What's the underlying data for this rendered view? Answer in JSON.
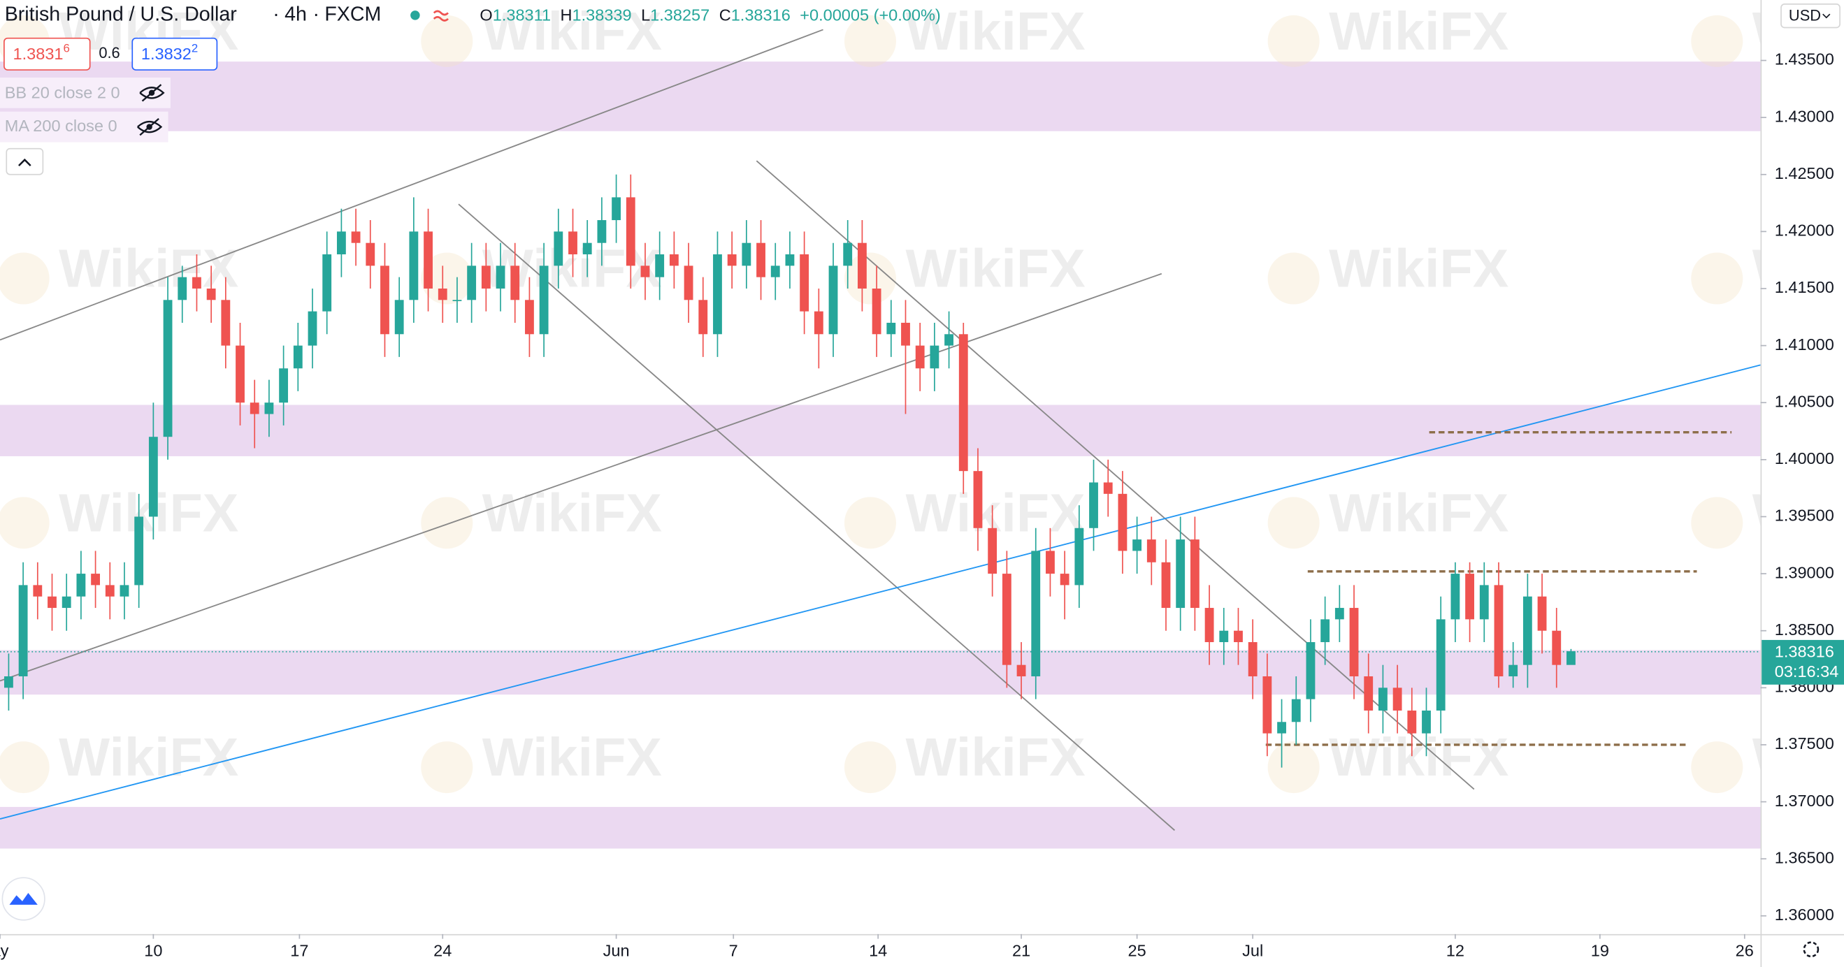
{
  "header": {
    "symbol": "British Pound / U.S. Dollar",
    "interval": "4h",
    "source": "FXCM",
    "ohlc": [
      {
        "label": "O",
        "value": "1.38311"
      },
      {
        "label": "H",
        "value": "1.38339"
      },
      {
        "label": "L",
        "value": "1.38257"
      },
      {
        "label": "C",
        "value": "1.38316"
      }
    ],
    "change": "+0.00005 (+0.00%)",
    "sell": {
      "main": "1.3831",
      "sup": "6"
    },
    "spread": "0.6",
    "buy": {
      "main": "1.3832",
      "sup": "2"
    },
    "indicators": [
      "BB 20 close 2 0",
      "MA 200 close 0"
    ],
    "currency": "USD",
    "countdown": "03:16:34",
    "watermark": "WikiFX"
  },
  "chart_data": {
    "type": "candlestick",
    "x": [
      -10,
      -9,
      -8,
      -7,
      -6,
      -5,
      -4,
      -3,
      -2,
      -1,
      0,
      1,
      2,
      3,
      4,
      5,
      6,
      7,
      8,
      9,
      10,
      11,
      12,
      13,
      14,
      15,
      16,
      17,
      18,
      19,
      20,
      21,
      22,
      23,
      24,
      25,
      26,
      27,
      28,
      29,
      30,
      31,
      32,
      33,
      34,
      35,
      36,
      37,
      38,
      39,
      40,
      41,
      42,
      43,
      44,
      45,
      46,
      47,
      48,
      49,
      50,
      51,
      52,
      53,
      54,
      55,
      56,
      57,
      58,
      59,
      60,
      61,
      62,
      63,
      64,
      65,
      66,
      67,
      68,
      69,
      70,
      71,
      72,
      73,
      74,
      75,
      76,
      77,
      78,
      79,
      80,
      81,
      82,
      83,
      84,
      85,
      86,
      87,
      88,
      89,
      90,
      91,
      92,
      93,
      94,
      95,
      96,
      97,
      98
    ],
    "open": [
      1.38,
      1.381,
      1.389,
      1.388,
      1.387,
      1.388,
      1.39,
      1.389,
      1.388,
      1.389,
      1.395,
      1.402,
      1.414,
      1.416,
      1.415,
      1.414,
      1.41,
      1.405,
      1.404,
      1.405,
      1.408,
      1.41,
      1.413,
      1.418,
      1.42,
      1.419,
      1.417,
      1.411,
      1.414,
      1.42,
      1.415,
      1.414,
      1.414,
      1.417,
      1.415,
      1.417,
      1.414,
      1.411,
      1.417,
      1.42,
      1.418,
      1.419,
      1.421,
      1.423,
      1.417,
      1.416,
      1.418,
      1.417,
      1.414,
      1.411,
      1.418,
      1.417,
      1.419,
      1.416,
      1.417,
      1.418,
      1.413,
      1.411,
      1.417,
      1.419,
      1.415,
      1.411,
      1.412,
      1.41,
      1.408,
      1.41,
      1.411,
      1.399,
      1.394,
      1.39,
      1.382,
      1.381,
      1.392,
      1.39,
      1.389,
      1.394,
      1.398,
      1.397,
      1.392,
      1.393,
      1.391,
      1.387,
      1.393,
      1.387,
      1.384,
      1.385,
      1.384,
      1.381,
      1.376,
      1.377,
      1.379,
      1.384,
      1.386,
      1.387,
      1.381,
      1.378,
      1.38,
      1.378,
      1.376,
      1.378,
      1.386,
      1.39,
      1.386,
      1.389,
      1.381,
      1.382,
      1.388,
      1.385,
      1.382
    ],
    "high": [
      1.383,
      1.391,
      1.391,
      1.39,
      1.39,
      1.392,
      1.392,
      1.391,
      1.391,
      1.397,
      1.405,
      1.416,
      1.417,
      1.418,
      1.417,
      1.416,
      1.412,
      1.407,
      1.407,
      1.41,
      1.412,
      1.415,
      1.42,
      1.422,
      1.422,
      1.421,
      1.419,
      1.416,
      1.423,
      1.422,
      1.417,
      1.416,
      1.419,
      1.419,
      1.419,
      1.419,
      1.416,
      1.419,
      1.422,
      1.422,
      1.421,
      1.423,
      1.425,
      1.425,
      1.419,
      1.42,
      1.42,
      1.419,
      1.416,
      1.42,
      1.42,
      1.421,
      1.421,
      1.419,
      1.42,
      1.42,
      1.415,
      1.419,
      1.421,
      1.421,
      1.417,
      1.414,
      1.414,
      1.412,
      1.412,
      1.413,
      1.412,
      1.401,
      1.396,
      1.392,
      1.384,
      1.394,
      1.394,
      1.392,
      1.396,
      1.4,
      1.4,
      1.399,
      1.395,
      1.395,
      1.393,
      1.395,
      1.395,
      1.389,
      1.387,
      1.387,
      1.386,
      1.383,
      1.379,
      1.381,
      1.386,
      1.388,
      1.389,
      1.389,
      1.383,
      1.382,
      1.382,
      1.38,
      1.38,
      1.388,
      1.391,
      1.391,
      1.391,
      1.391,
      1.384,
      1.39,
      1.39,
      1.387,
      1.3834
    ],
    "low": [
      1.378,
      1.379,
      1.386,
      1.385,
      1.385,
      1.386,
      1.387,
      1.386,
      1.386,
      1.387,
      1.393,
      1.4,
      1.412,
      1.413,
      1.412,
      1.408,
      1.403,
      1.401,
      1.402,
      1.403,
      1.406,
      1.408,
      1.411,
      1.416,
      1.417,
      1.415,
      1.409,
      1.409,
      1.412,
      1.413,
      1.412,
      1.412,
      1.412,
      1.413,
      1.413,
      1.412,
      1.409,
      1.409,
      1.415,
      1.416,
      1.416,
      1.417,
      1.419,
      1.415,
      1.414,
      1.414,
      1.415,
      1.412,
      1.409,
      1.409,
      1.415,
      1.415,
      1.414,
      1.414,
      1.415,
      1.411,
      1.408,
      1.409,
      1.415,
      1.413,
      1.409,
      1.409,
      1.404,
      1.406,
      1.406,
      1.408,
      1.397,
      1.392,
      1.388,
      1.38,
      1.379,
      1.379,
      1.388,
      1.386,
      1.387,
      1.392,
      1.395,
      1.39,
      1.39,
      1.389,
      1.385,
      1.385,
      1.385,
      1.382,
      1.382,
      1.382,
      1.379,
      1.374,
      1.373,
      1.375,
      1.377,
      1.382,
      1.384,
      1.379,
      1.376,
      1.376,
      1.376,
      1.374,
      1.374,
      1.376,
      1.384,
      1.384,
      1.384,
      1.38,
      1.38,
      1.38,
      1.383,
      1.38,
      1.3826
    ],
    "close": [
      1.381,
      1.389,
      1.388,
      1.387,
      1.388,
      1.39,
      1.389,
      1.388,
      1.389,
      1.395,
      1.402,
      1.414,
      1.416,
      1.415,
      1.414,
      1.41,
      1.405,
      1.404,
      1.405,
      1.408,
      1.41,
      1.413,
      1.418,
      1.42,
      1.419,
      1.417,
      1.411,
      1.414,
      1.42,
      1.415,
      1.414,
      1.414,
      1.417,
      1.415,
      1.417,
      1.414,
      1.411,
      1.417,
      1.42,
      1.418,
      1.419,
      1.421,
      1.423,
      1.417,
      1.416,
      1.418,
      1.417,
      1.414,
      1.411,
      1.418,
      1.417,
      1.419,
      1.416,
      1.417,
      1.418,
      1.413,
      1.411,
      1.417,
      1.419,
      1.415,
      1.411,
      1.412,
      1.41,
      1.408,
      1.41,
      1.411,
      1.399,
      1.394,
      1.39,
      1.382,
      1.381,
      1.392,
      1.39,
      1.389,
      1.394,
      1.398,
      1.397,
      1.392,
      1.393,
      1.391,
      1.387,
      1.393,
      1.387,
      1.384,
      1.385,
      1.384,
      1.381,
      1.376,
      1.377,
      1.379,
      1.384,
      1.386,
      1.387,
      1.381,
      1.378,
      1.38,
      1.378,
      1.376,
      1.378,
      1.386,
      1.39,
      1.386,
      1.389,
      1.381,
      1.382,
      1.388,
      1.385,
      1.382,
      1.3832
    ],
    "up_color": "#26a69a",
    "down_color": "#ef5350",
    "xlim": [
      -10.6,
      111.1
    ],
    "xticks": [
      {
        "value": -10.6,
        "label": "ay"
      },
      {
        "value": 0,
        "label": "10"
      },
      {
        "value": 10.1,
        "label": "17"
      },
      {
        "value": 20,
        "label": "24"
      },
      {
        "value": 32,
        "label": "Jun"
      },
      {
        "value": 40.1,
        "label": "7"
      },
      {
        "value": 50.1,
        "label": "14"
      },
      {
        "value": 60,
        "label": "21"
      },
      {
        "value": 68,
        "label": "25"
      },
      {
        "value": 76,
        "label": "Jul"
      },
      {
        "value": 90,
        "label": "12"
      },
      {
        "value": 100,
        "label": "19"
      },
      {
        "value": 110,
        "label": "26"
      }
    ],
    "ylim": [
      1.3584,
      1.4403
    ],
    "yticks": [
      {
        "value": 1.36,
        "label": "1.36000"
      },
      {
        "value": 1.365,
        "label": "1.36500"
      },
      {
        "value": 1.37,
        "label": "1.37000"
      },
      {
        "value": 1.375,
        "label": "1.37500"
      },
      {
        "value": 1.38,
        "label": "1.38000"
      },
      {
        "value": 1.385,
        "label": "1.38500"
      },
      {
        "value": 1.39,
        "label": "1.39000"
      },
      {
        "value": 1.395,
        "label": "1.39500"
      },
      {
        "value": 1.4,
        "label": "1.40000"
      },
      {
        "value": 1.405,
        "label": "1.40500"
      },
      {
        "value": 1.41,
        "label": "1.41000"
      },
      {
        "value": 1.415,
        "label": "1.41500"
      },
      {
        "value": 1.42,
        "label": "1.42000"
      },
      {
        "value": 1.425,
        "label": "1.42500"
      },
      {
        "value": 1.43,
        "label": "1.43000"
      },
      {
        "value": 1.435,
        "label": "1.43500"
      }
    ],
    "last_price": 1.38316,
    "zones": [
      [
        1.4288,
        1.4349
      ],
      [
        1.4003,
        1.4048
      ],
      [
        1.3794,
        1.3833
      ],
      [
        1.3659,
        1.36955
      ]
    ],
    "zone_color": "#e7d2ee",
    "trendlines": [
      {
        "x": [
          -10.6,
          46.3
        ],
        "y": [
          1.4105,
          1.4377
        ],
        "color": "#888888",
        "dashed": false
      },
      {
        "x": [
          -10.6,
          69.7
        ],
        "y": [
          1.3806,
          1.4163
        ],
        "color": "#888888",
        "dashed": false
      },
      {
        "x": [
          41.7,
          91.3
        ],
        "y": [
          1.4262,
          1.3711
        ],
        "color": "#888888",
        "dashed": false
      },
      {
        "x": [
          21.1,
          70.6
        ],
        "y": [
          1.4224,
          1.3675
        ],
        "color": "#888888",
        "dashed": false
      },
      {
        "x": [
          -10.6,
          111.1
        ],
        "y": [
          1.3685,
          1.4083
        ],
        "color": "#2196f3",
        "dashed": false
      },
      {
        "x": [
          88.2,
          109.1
        ],
        "y": [
          1.4024,
          1.4024
        ],
        "color": "#8d6e4a",
        "dashed": true
      },
      {
        "x": [
          79.8,
          106.7
        ],
        "y": [
          1.3902,
          1.3902
        ],
        "color": "#8d6e4a",
        "dashed": true
      },
      {
        "x": [
          76.9,
          106.1
        ],
        "y": [
          1.375,
          1.375
        ],
        "color": "#8d6e4a",
        "dashed": true
      }
    ]
  }
}
